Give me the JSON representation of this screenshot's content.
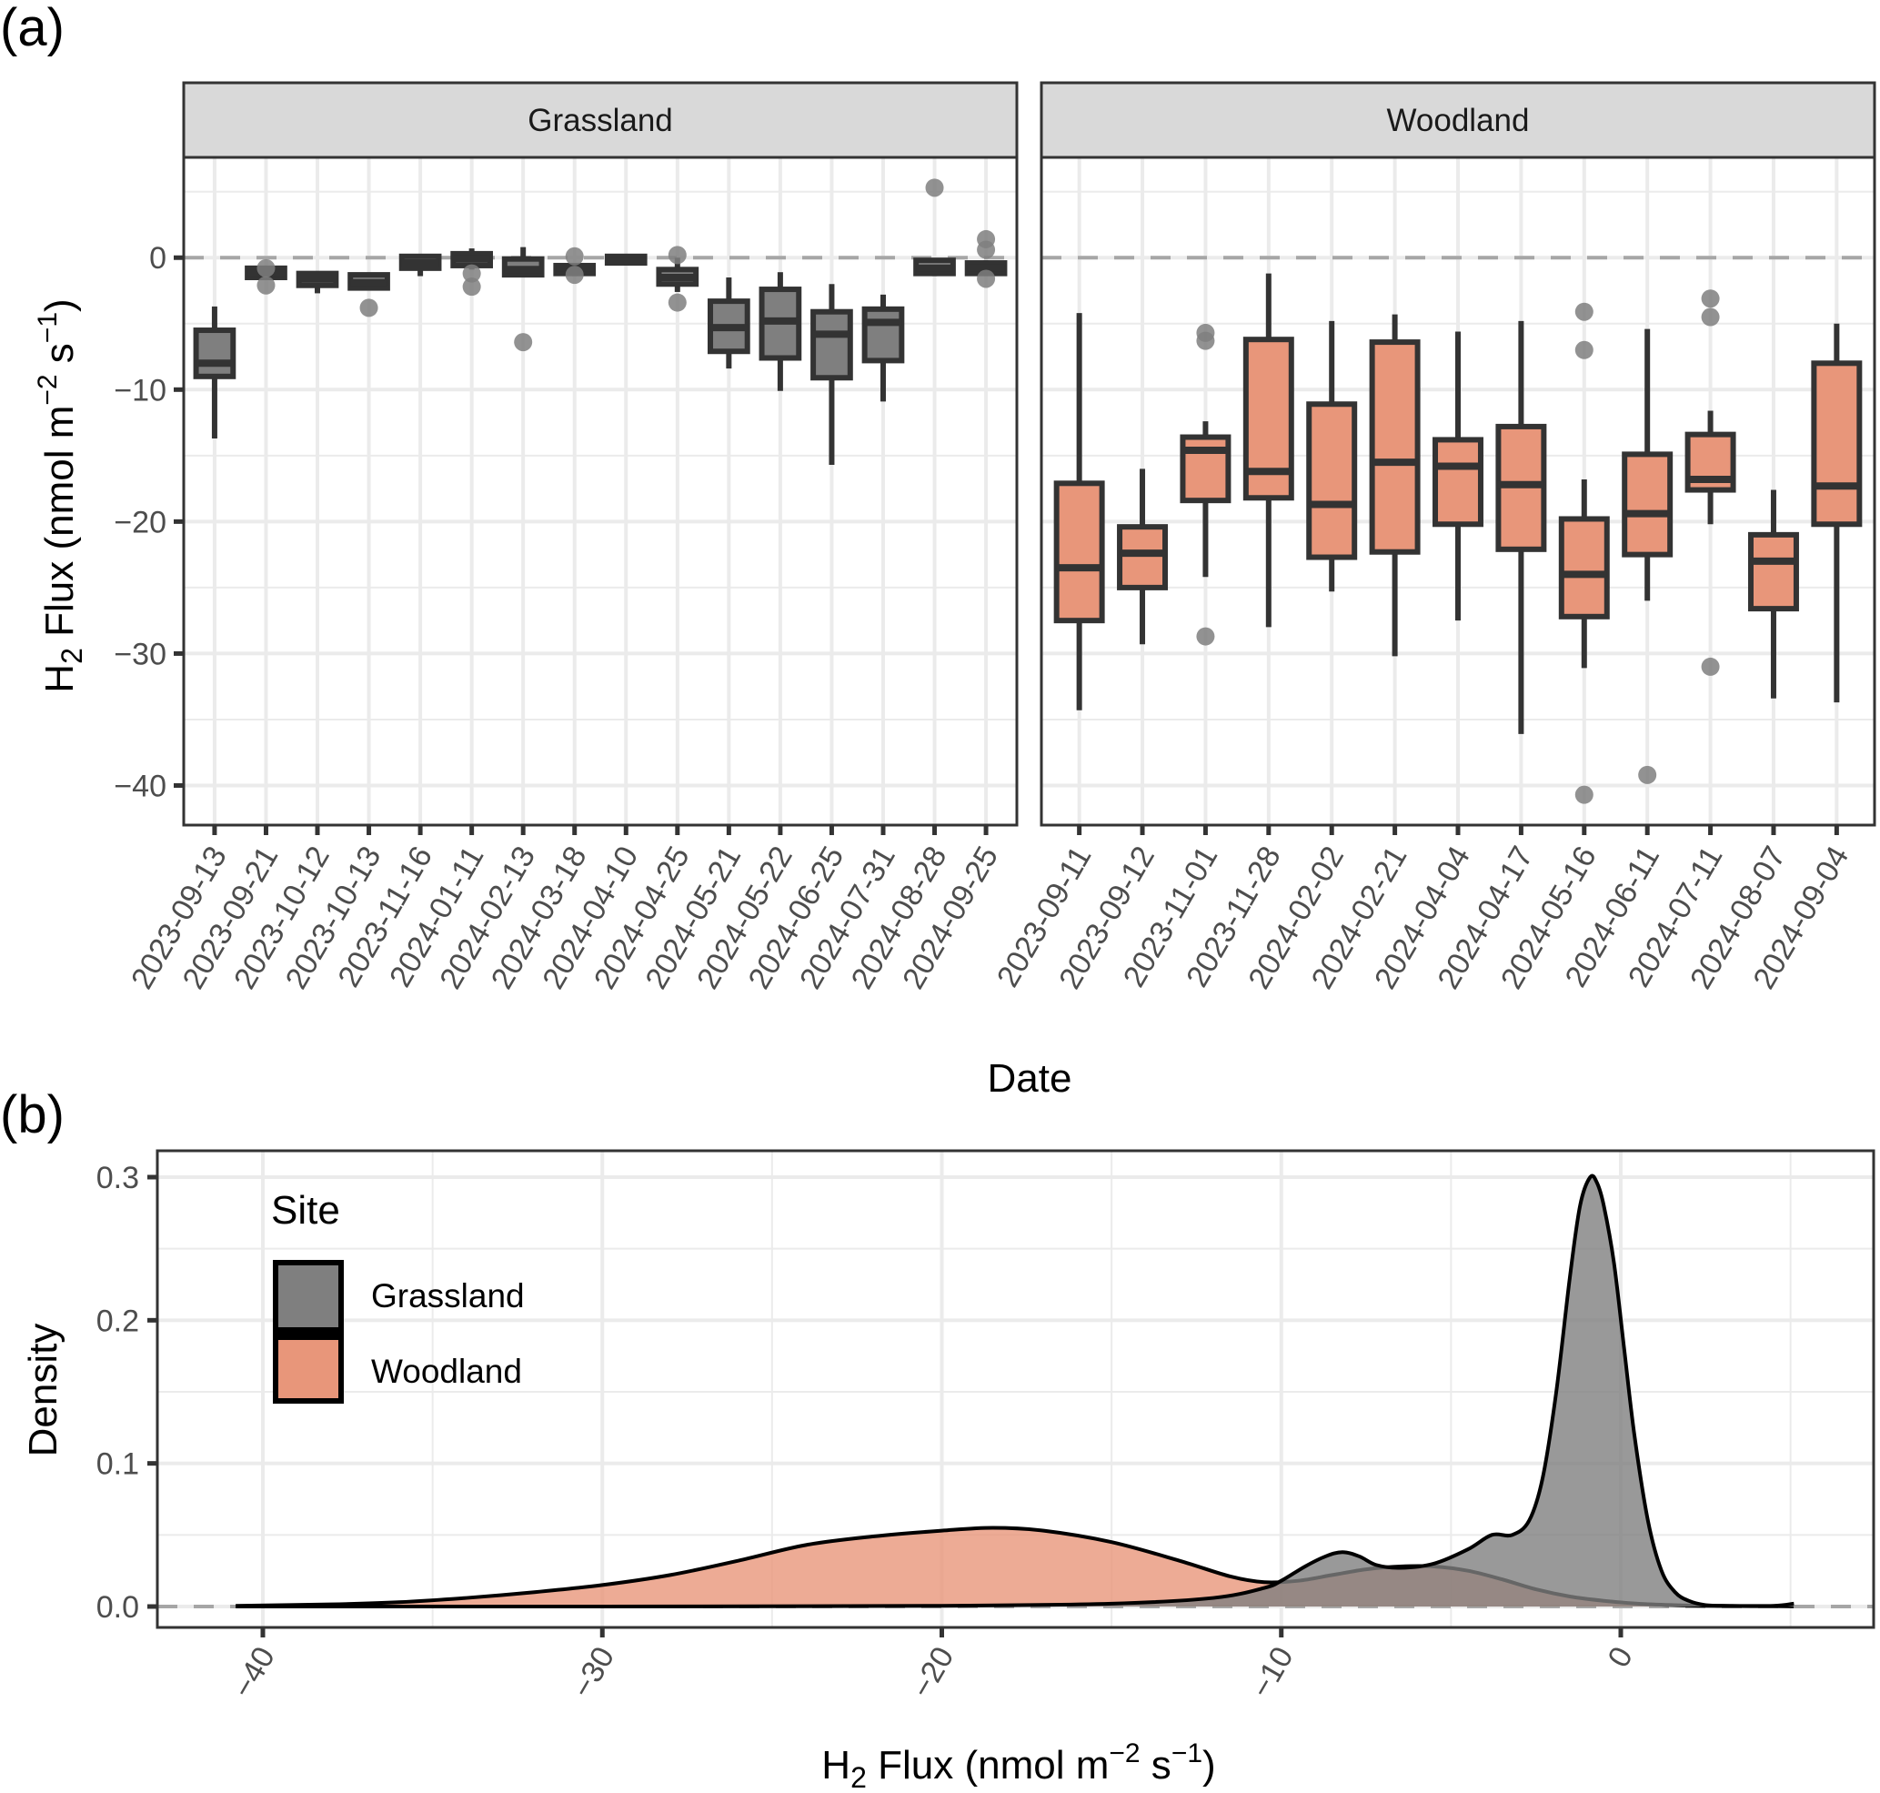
{
  "figure": {
    "panel_a_label": "(a)",
    "panel_b_label": "(b)"
  },
  "colors": {
    "grassland_fill": "#7f7f7f",
    "woodland_fill": "#e8967a",
    "box_line": "#333333",
    "outlier": "#7f7f7f",
    "grid_major": "#ebebeb",
    "strip_bg": "#d9d9d9",
    "zero_line": "#a6a6a6"
  },
  "chart_data": [
    {
      "type": "boxplot",
      "title": "",
      "xlabel": "Date",
      "ylabel_parts": {
        "main": "H",
        "sub": "2",
        "rest": " Flux   (nmol  m",
        "sup1": "−2",
        "mid": " s",
        "sup2": "−1",
        "end": ")"
      },
      "ylim": [
        -43,
        7.6
      ],
      "yticks": [
        0,
        -10,
        -20,
        -30,
        -40
      ],
      "ytick_labels": [
        "0",
        "−10",
        "−20",
        "−30",
        "−40"
      ],
      "reference_line": 0,
      "facets": [
        {
          "name": "Grassland",
          "fill_key": "grassland_fill",
          "categories": [
            "2023-09-13",
            "2023-09-21",
            "2023-10-12",
            "2023-10-13",
            "2023-11-16",
            "2024-01-11",
            "2024-02-13",
            "2024-03-18",
            "2024-04-10",
            "2024-04-25",
            "2024-05-21",
            "2024-05-22",
            "2024-06-25",
            "2024-07-31",
            "2024-08-28",
            "2024-09-25"
          ],
          "boxes": [
            {
              "whisker_high": -3.7,
              "q3": -5.5,
              "median": -8.0,
              "q1": -9.0,
              "whisker_low": -13.7,
              "outliers": []
            },
            {
              "whisker_high": -0.8,
              "q3": -0.8,
              "median": -1.2,
              "q1": -1.5,
              "whisker_low": -1.5,
              "outliers": [
                -0.8,
                -2.1
              ]
            },
            {
              "whisker_high": -1.2,
              "q3": -1.2,
              "median": -1.6,
              "q1": -2.1,
              "whisker_low": -2.7,
              "outliers": []
            },
            {
              "whisker_high": -1.3,
              "q3": -1.3,
              "median": -1.9,
              "q1": -2.3,
              "whisker_low": -2.3,
              "outliers": [
                -3.8
              ]
            },
            {
              "whisker_high": 0.1,
              "q3": 0.1,
              "median": -0.4,
              "q1": -0.8,
              "whisker_low": -1.4,
              "outliers": []
            },
            {
              "whisker_high": 0.7,
              "q3": 0.3,
              "median": -0.1,
              "q1": -0.6,
              "whisker_low": -0.9,
              "outliers": [
                -1.2,
                -2.2
              ]
            },
            {
              "whisker_high": 0.8,
              "q3": -0.1,
              "median": -0.9,
              "q1": -1.3,
              "whisker_low": -1.5,
              "outliers": [
                -6.4
              ]
            },
            {
              "whisker_high": -0.4,
              "q3": -0.6,
              "median": -0.8,
              "q1": -1.2,
              "whisker_low": -1.4,
              "outliers": [
                0.1,
                -1.3
              ]
            },
            {
              "whisker_high": 0.1,
              "q3": 0.1,
              "median": -0.3,
              "q1": -0.4,
              "whisker_low": -0.6,
              "outliers": []
            },
            {
              "whisker_high": 0.0,
              "q3": -0.9,
              "median": -1.5,
              "q1": -2.0,
              "whisker_low": -2.6,
              "outliers": [
                0.2,
                -3.4
              ]
            },
            {
              "whisker_high": -1.5,
              "q3": -3.3,
              "median": -5.3,
              "q1": -7.1,
              "whisker_low": -8.4,
              "outliers": []
            },
            {
              "whisker_high": -1.1,
              "q3": -2.4,
              "median": -4.8,
              "q1": -7.6,
              "whisker_low": -10.1,
              "outliers": []
            },
            {
              "whisker_high": -2.0,
              "q3": -4.1,
              "median": -5.8,
              "q1": -9.1,
              "whisker_low": -15.7,
              "outliers": []
            },
            {
              "whisker_high": -2.8,
              "q3": -3.9,
              "median": -4.9,
              "q1": -7.8,
              "whisker_low": -10.9,
              "outliers": []
            },
            {
              "whisker_high": -0.1,
              "q3": -0.2,
              "median": -0.8,
              "q1": -1.2,
              "whisker_low": -1.4,
              "outliers": [
                5.3
              ]
            },
            {
              "whisker_high": -0.2,
              "q3": -0.4,
              "median": -0.8,
              "q1": -1.2,
              "whisker_low": -1.3,
              "outliers": [
                1.4,
                0.6,
                -1.6
              ]
            }
          ]
        },
        {
          "name": "Woodland",
          "fill_key": "woodland_fill",
          "categories": [
            "2023-09-11",
            "2023-09-12",
            "2023-11-01",
            "2023-11-28",
            "2024-02-02",
            "2024-02-21",
            "2024-04-04",
            "2024-04-17",
            "2024-05-16",
            "2024-06-11",
            "2024-07-11",
            "2024-08-07",
            "2024-09-04"
          ],
          "boxes": [
            {
              "whisker_high": -4.2,
              "q3": -17.1,
              "median": -23.5,
              "q1": -27.5,
              "whisker_low": -34.3,
              "outliers": []
            },
            {
              "whisker_high": -16.0,
              "q3": -20.4,
              "median": -22.4,
              "q1": -25.0,
              "whisker_low": -29.3,
              "outliers": []
            },
            {
              "whisker_high": -12.4,
              "q3": -13.6,
              "median": -14.6,
              "q1": -18.4,
              "whisker_low": -24.2,
              "outliers": [
                -5.7,
                -6.3,
                -28.7
              ]
            },
            {
              "whisker_high": -1.2,
              "q3": -6.2,
              "median": -16.2,
              "q1": -18.2,
              "whisker_low": -28.0,
              "outliers": []
            },
            {
              "whisker_high": -4.8,
              "q3": -11.1,
              "median": -18.7,
              "q1": -22.7,
              "whisker_low": -25.3,
              "outliers": []
            },
            {
              "whisker_high": -4.3,
              "q3": -6.4,
              "median": -15.5,
              "q1": -22.3,
              "whisker_low": -30.2,
              "outliers": []
            },
            {
              "whisker_high": -5.6,
              "q3": -13.8,
              "median": -15.8,
              "q1": -20.2,
              "whisker_low": -27.5,
              "outliers": []
            },
            {
              "whisker_high": -4.8,
              "q3": -12.8,
              "median": -17.2,
              "q1": -22.1,
              "whisker_low": -36.1,
              "outliers": []
            },
            {
              "whisker_high": -16.8,
              "q3": -19.8,
              "median": -24.0,
              "q1": -27.2,
              "whisker_low": -31.1,
              "outliers": [
                -4.1,
                -7.0,
                -40.7
              ]
            },
            {
              "whisker_high": -5.4,
              "q3": -14.9,
              "median": -19.4,
              "q1": -22.5,
              "whisker_low": -26.0,
              "outliers": [
                -39.2
              ]
            },
            {
              "whisker_high": -11.6,
              "q3": -13.4,
              "median": -16.8,
              "q1": -17.6,
              "whisker_low": -20.2,
              "outliers": [
                -3.1,
                -4.5,
                -31.0
              ]
            },
            {
              "whisker_high": -17.6,
              "q3": -21.0,
              "median": -23.0,
              "q1": -26.6,
              "whisker_low": -33.4,
              "outliers": []
            },
            {
              "whisker_high": -5.0,
              "q3": -8.0,
              "median": -17.3,
              "q1": -20.2,
              "whisker_low": -33.7,
              "outliers": []
            }
          ]
        }
      ]
    },
    {
      "type": "area",
      "title": "",
      "xlabel_parts": {
        "main": "H",
        "sub": "2",
        "rest": " Flux   (nmol  m",
        "sup1": "−2",
        "mid": " s",
        "sup2": "−1",
        "end": ")"
      },
      "ylabel": "Density",
      "xlim": [
        -43,
        7.5
      ],
      "ylim": [
        -0.02,
        0.32
      ],
      "xticks": [
        -40,
        -30,
        -20,
        -10,
        0
      ],
      "xtick_labels": [
        "−40",
        "−30",
        "−20",
        "−10",
        "0"
      ],
      "yticks": [
        0.0,
        0.1,
        0.2,
        0.3
      ],
      "ytick_labels": [
        "0.0",
        "0.1",
        "0.2",
        "0.3"
      ],
      "reference_line": 0,
      "legend": {
        "title": "Site",
        "position": "top-left",
        "entries": [
          "Grassland",
          "Woodland"
        ]
      },
      "series": [
        {
          "name": "Woodland",
          "fill_key": "woodland_fill",
          "x": [
            -40.8,
            -38,
            -36,
            -34,
            -32,
            -30,
            -28,
            -26,
            -24,
            -22,
            -20,
            -18.5,
            -17,
            -15,
            -13,
            -11.5,
            -10.5,
            -9.5,
            -8.5,
            -7.5,
            -6.5,
            -5.5,
            -4.5,
            -3.5,
            -2.5,
            -1.5,
            -0.5,
            0.5,
            1.5,
            2.5,
            3.5,
            4.5,
            5.1
          ],
          "y": [
            0.0005,
            0.0015,
            0.003,
            0.006,
            0.01,
            0.015,
            0.022,
            0.032,
            0.043,
            0.049,
            0.053,
            0.055,
            0.053,
            0.045,
            0.032,
            0.021,
            0.017,
            0.018,
            0.022,
            0.026,
            0.028,
            0.028,
            0.025,
            0.019,
            0.012,
            0.007,
            0.004,
            0.002,
            0.001,
            0.0005,
            0.0003,
            0.0002,
            0.0001
          ]
        },
        {
          "name": "Grassland",
          "fill_key": "grassland_fill",
          "x": [
            -40.8,
            -30,
            -20,
            -15,
            -12,
            -10.5,
            -10,
            -9.3,
            -8.7,
            -8.2,
            -7.7,
            -7.2,
            -6.5,
            -5.5,
            -4.5,
            -3.8,
            -3.2,
            -2.7,
            -2.3,
            -1.9,
            -1.5,
            -1.2,
            -0.9,
            -0.7,
            -0.5,
            -0.2,
            0.1,
            0.4,
            0.8,
            1.2,
            1.6,
            2.0,
            2.5,
            3.2,
            4.5,
            5.1
          ],
          "y": [
            0.0,
            0.0,
            0.0005,
            0.002,
            0.006,
            0.013,
            0.018,
            0.028,
            0.035,
            0.038,
            0.035,
            0.029,
            0.027,
            0.03,
            0.04,
            0.05,
            0.05,
            0.06,
            0.09,
            0.15,
            0.23,
            0.28,
            0.3,
            0.296,
            0.28,
            0.24,
            0.18,
            0.12,
            0.06,
            0.025,
            0.01,
            0.004,
            0.001,
            0.0005,
            0.0005,
            0.002
          ]
        }
      ]
    }
  ]
}
